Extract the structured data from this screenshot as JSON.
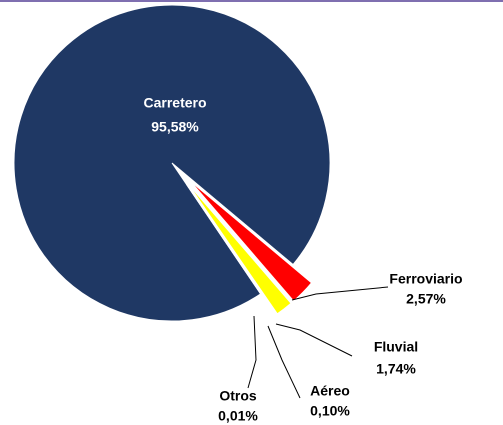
{
  "chart_data": {
    "type": "pie",
    "categories": [
      "Carretero",
      "Ferroviario",
      "Fluvial",
      "Aéreo",
      "Otros"
    ],
    "values": [
      95.58,
      2.57,
      1.74,
      0.1,
      0.01
    ],
    "value_labels": [
      "95,58%",
      "2,57%",
      "1,74%",
      "0,10%",
      "0,01%"
    ],
    "colors": [
      "#1f3864",
      "#ff0000",
      "#ffff00",
      "#ffff99",
      "#99ccff"
    ]
  }
}
